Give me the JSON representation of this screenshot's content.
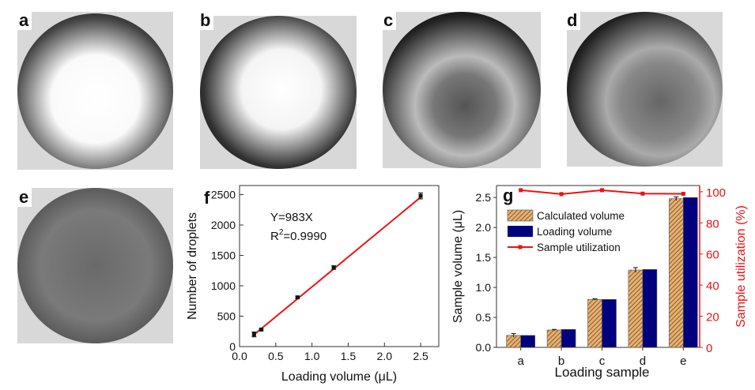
{
  "panels": {
    "a": {
      "label": "a"
    },
    "b": {
      "label": "b"
    },
    "c": {
      "label": "c"
    },
    "d": {
      "label": "d"
    },
    "e": {
      "label": "e"
    }
  },
  "chart_data": [
    {
      "panel": "f",
      "type": "scatter",
      "title": "",
      "xlabel": "Loading volume (μL)",
      "ylabel": "Number of droplets",
      "xlim": [
        0,
        2.75
      ],
      "ylim": [
        0,
        2650
      ],
      "xticks": [
        "0.0",
        "0.5",
        "1.0",
        "1.5",
        "2.0",
        "2.5"
      ],
      "yticks": [
        "0",
        "500",
        "1000",
        "1500",
        "2000",
        "2500"
      ],
      "x": [
        0.2,
        0.3,
        0.8,
        1.3,
        2.5
      ],
      "y": [
        200,
        280,
        810,
        1300,
        2480
      ],
      "yerr": [
        40,
        15,
        20,
        30,
        50
      ],
      "fit": {
        "slope": 983,
        "equation": "Y=983X",
        "r2_label": "R",
        "r2_sup": "2",
        "r2_value": "=0.9990",
        "color": "#ee1111"
      },
      "grid": false
    },
    {
      "panel": "g",
      "type": "bar",
      "xlabel": "Loading sample",
      "ylabel": "Sample volume (μL)",
      "y2label": "Sample utilization (%)",
      "categories": [
        "a",
        "b",
        "c",
        "d",
        "e"
      ],
      "ylim": [
        0,
        2.7
      ],
      "y2lim": [
        0,
        104
      ],
      "yticks": [
        "0.0",
        "0.5",
        "1.0",
        "1.5",
        "2.0",
        "2.5"
      ],
      "y2ticks": [
        "0",
        "20",
        "40",
        "60",
        "80",
        "100"
      ],
      "series": [
        {
          "name": "Calculated volume",
          "values": [
            0.2,
            0.29,
            0.8,
            1.29,
            2.48
          ],
          "yerr": [
            0.03,
            0.01,
            0.01,
            0.04,
            0.03
          ],
          "color": "#d9a066",
          "hatch": true
        },
        {
          "name": "Loading volume",
          "values": [
            0.2,
            0.3,
            0.8,
            1.3,
            2.5
          ],
          "color": "#00007f"
        },
        {
          "name": "Sample utilization",
          "values": [
            101,
            98.5,
            101,
            98.8,
            98.7
          ],
          "color": "#ee1111",
          "axis": "right",
          "type": "line"
        }
      ],
      "legend": "top-left",
      "grid": false
    }
  ]
}
